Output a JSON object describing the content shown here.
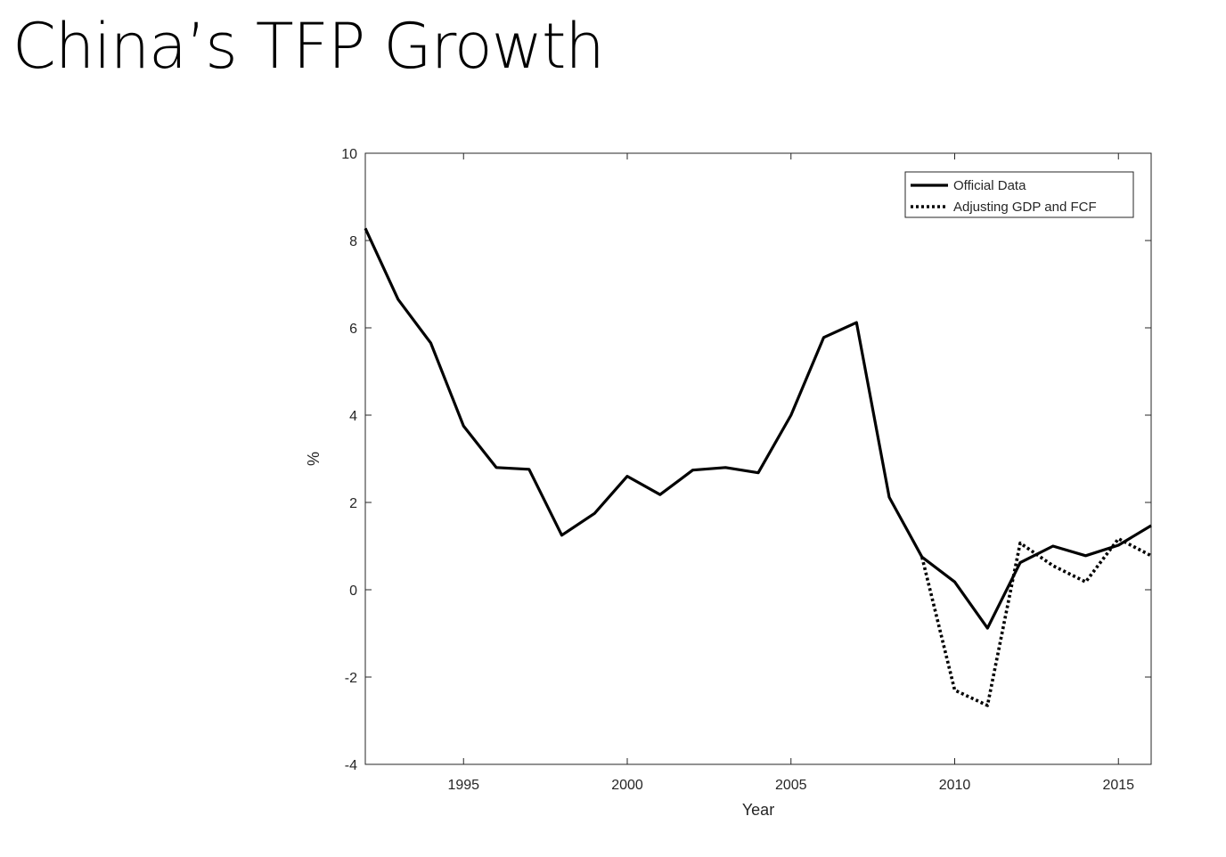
{
  "slide": {
    "title": "China’s TFP Growth"
  },
  "chart_data": {
    "type": "line",
    "title": "",
    "xlabel": "Year",
    "ylabel": "%",
    "xlim": [
      1992,
      2016
    ],
    "ylim": [
      -4,
      10
    ],
    "xticks": [
      1995,
      2000,
      2005,
      2010,
      2015
    ],
    "yticks": [
      -4,
      -2,
      0,
      2,
      4,
      6,
      8,
      10
    ],
    "grid": false,
    "legend_position": "top-right",
    "series": [
      {
        "name": "Official Data",
        "style": "solid",
        "color": "#000000",
        "x": [
          1992,
          1993,
          1994,
          1995,
          1996,
          1997,
          1998,
          1999,
          2000,
          2001,
          2002,
          2003,
          2004,
          2005,
          2006,
          2007,
          2008,
          2009,
          2010,
          2011,
          2012,
          2013,
          2014,
          2015,
          2016
        ],
        "values": [
          8.28,
          6.65,
          5.65,
          3.75,
          2.8,
          2.76,
          1.25,
          1.75,
          2.6,
          2.18,
          2.74,
          2.8,
          2.68,
          4.0,
          5.78,
          6.12,
          2.12,
          0.75,
          0.18,
          -0.88,
          0.62,
          1.0,
          0.78,
          1.02,
          1.47
        ]
      },
      {
        "name": "Adjusting GDP and FCF",
        "style": "dotted",
        "color": "#000000",
        "x": [
          2009,
          2010,
          2011,
          2012,
          2013,
          2014,
          2015,
          2016
        ],
        "values": [
          0.75,
          -2.3,
          -2.65,
          1.07,
          0.55,
          0.18,
          1.17,
          0.78
        ]
      }
    ]
  }
}
